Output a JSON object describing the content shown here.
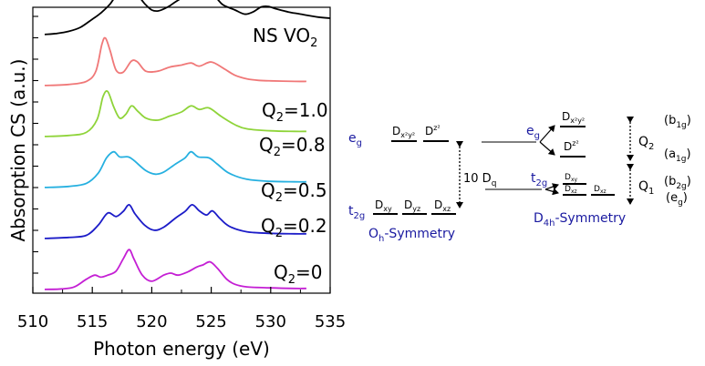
{
  "chart_data": {
    "type": "line",
    "title": "",
    "xlabel": "Photon energy (eV)",
    "ylabel": "Absorption CS (a.u.)",
    "xlim": [
      510,
      535
    ],
    "x_ticks": [
      "510",
      "515",
      "520",
      "525",
      "530",
      "535"
    ],
    "series": [
      {
        "name": "NS VO2",
        "label_main": "NS VO",
        "label_sub": "2",
        "color": "#000000",
        "offset": 5.0,
        "points": [
          [
            511,
            0.02
          ],
          [
            512,
            0.04
          ],
          [
            513,
            0.08
          ],
          [
            514,
            0.16
          ],
          [
            515,
            0.32
          ],
          [
            515.5,
            0.4
          ],
          [
            516,
            0.5
          ],
          [
            516.5,
            0.62
          ],
          [
            517,
            0.78
          ],
          [
            517.5,
            0.88
          ],
          [
            518,
            0.9
          ],
          [
            518.5,
            0.86
          ],
          [
            519,
            0.74
          ],
          [
            519.5,
            0.6
          ],
          [
            520,
            0.5
          ],
          [
            520.5,
            0.48
          ],
          [
            521,
            0.52
          ],
          [
            521.5,
            0.58
          ],
          [
            522,
            0.66
          ],
          [
            523,
            0.8
          ],
          [
            524,
            0.9
          ],
          [
            524.5,
            0.9
          ],
          [
            525,
            0.84
          ],
          [
            525.5,
            0.72
          ],
          [
            526,
            0.6
          ],
          [
            527,
            0.5
          ],
          [
            527.8,
            0.42
          ],
          [
            528.5,
            0.46
          ],
          [
            529.2,
            0.56
          ],
          [
            529.8,
            0.57
          ],
          [
            530.5,
            0.52
          ],
          [
            531.5,
            0.46
          ],
          [
            532.5,
            0.42
          ],
          [
            534,
            0.36
          ],
          [
            535,
            0.34
          ]
        ]
      },
      {
        "name": "Q2=1.0",
        "label_main": "Q",
        "label_sub": "2",
        "label_tail": "=1.0",
        "color": "#f07878",
        "offset": 4.0,
        "points": [
          [
            511,
            0.02
          ],
          [
            513,
            0.04
          ],
          [
            514.5,
            0.1
          ],
          [
            515.3,
            0.3
          ],
          [
            515.8,
            0.82
          ],
          [
            516.1,
            0.95
          ],
          [
            516.5,
            0.7
          ],
          [
            517,
            0.32
          ],
          [
            517.6,
            0.28
          ],
          [
            518.3,
            0.5
          ],
          [
            518.8,
            0.48
          ],
          [
            519.5,
            0.3
          ],
          [
            520.5,
            0.3
          ],
          [
            521.5,
            0.38
          ],
          [
            522.5,
            0.42
          ],
          [
            523.3,
            0.46
          ],
          [
            524,
            0.4
          ],
          [
            525,
            0.48
          ],
          [
            526,
            0.36
          ],
          [
            527,
            0.22
          ],
          [
            528,
            0.15
          ],
          [
            529,
            0.12
          ],
          [
            530,
            0.11
          ],
          [
            532,
            0.1
          ],
          [
            533,
            0.1
          ]
        ]
      },
      {
        "name": "Q2=0.8",
        "label_main": "Q",
        "label_sub": "2",
        "label_tail": "=0.8",
        "color": "#8fd43a",
        "offset": 3.0,
        "points": [
          [
            511,
            0.02
          ],
          [
            513,
            0.04
          ],
          [
            514.5,
            0.1
          ],
          [
            515.4,
            0.35
          ],
          [
            515.9,
            0.8
          ],
          [
            516.3,
            0.9
          ],
          [
            516.8,
            0.6
          ],
          [
            517.3,
            0.38
          ],
          [
            517.8,
            0.45
          ],
          [
            518.3,
            0.62
          ],
          [
            518.8,
            0.52
          ],
          [
            519.5,
            0.38
          ],
          [
            520.5,
            0.34
          ],
          [
            521.5,
            0.42
          ],
          [
            522.5,
            0.5
          ],
          [
            523.3,
            0.62
          ],
          [
            524,
            0.55
          ],
          [
            524.8,
            0.58
          ],
          [
            525.8,
            0.42
          ],
          [
            527,
            0.25
          ],
          [
            528,
            0.17
          ],
          [
            530,
            0.13
          ],
          [
            532,
            0.12
          ],
          [
            533,
            0.12
          ]
        ]
      },
      {
        "name": "Q2=0.5",
        "label_main": "Q",
        "label_sub": "2",
        "label_tail": "=0.5",
        "color": "#26b0e0",
        "offset": 2.0,
        "points": [
          [
            511,
            0.02
          ],
          [
            513,
            0.04
          ],
          [
            514.5,
            0.1
          ],
          [
            515.5,
            0.3
          ],
          [
            516.2,
            0.6
          ],
          [
            516.8,
            0.72
          ],
          [
            517.3,
            0.62
          ],
          [
            518,
            0.62
          ],
          [
            518.5,
            0.55
          ],
          [
            519.5,
            0.35
          ],
          [
            520.3,
            0.28
          ],
          [
            521,
            0.32
          ],
          [
            522,
            0.48
          ],
          [
            522.8,
            0.6
          ],
          [
            523.3,
            0.72
          ],
          [
            523.9,
            0.62
          ],
          [
            524.8,
            0.6
          ],
          [
            525.5,
            0.48
          ],
          [
            526.5,
            0.3
          ],
          [
            528,
            0.18
          ],
          [
            530,
            0.14
          ],
          [
            532,
            0.13
          ],
          [
            533,
            0.13
          ]
        ]
      },
      {
        "name": "Q2=0.2",
        "label_main": "Q",
        "label_sub": "2",
        "label_tail": "=0.2",
        "color": "#1c1cc8",
        "offset": 1.0,
        "points": [
          [
            511,
            0.02
          ],
          [
            513,
            0.04
          ],
          [
            514.5,
            0.08
          ],
          [
            515.5,
            0.28
          ],
          [
            516.3,
            0.52
          ],
          [
            517,
            0.45
          ],
          [
            517.6,
            0.55
          ],
          [
            518.1,
            0.68
          ],
          [
            518.6,
            0.5
          ],
          [
            519.4,
            0.28
          ],
          [
            520.2,
            0.18
          ],
          [
            521,
            0.24
          ],
          [
            522,
            0.42
          ],
          [
            522.8,
            0.55
          ],
          [
            523.4,
            0.68
          ],
          [
            524,
            0.56
          ],
          [
            524.6,
            0.48
          ],
          [
            525.1,
            0.56
          ],
          [
            525.7,
            0.42
          ],
          [
            526.5,
            0.26
          ],
          [
            528,
            0.15
          ],
          [
            530,
            0.12
          ],
          [
            532,
            0.11
          ],
          [
            533,
            0.11
          ]
        ]
      },
      {
        "name": "Q2=0",
        "label_main": "Q",
        "label_sub": "2",
        "label_tail": "=0",
        "color": "#c41fd4",
        "offset": 0.0,
        "points": [
          [
            511,
            0.02
          ],
          [
            512.5,
            0.03
          ],
          [
            513.5,
            0.07
          ],
          [
            514.5,
            0.22
          ],
          [
            515.2,
            0.3
          ],
          [
            515.7,
            0.26
          ],
          [
            516.3,
            0.3
          ],
          [
            517,
            0.38
          ],
          [
            517.6,
            0.62
          ],
          [
            518.1,
            0.8
          ],
          [
            518.5,
            0.62
          ],
          [
            519.2,
            0.3
          ],
          [
            520,
            0.18
          ],
          [
            521,
            0.3
          ],
          [
            521.6,
            0.34
          ],
          [
            522.2,
            0.3
          ],
          [
            523,
            0.36
          ],
          [
            523.8,
            0.46
          ],
          [
            524.3,
            0.5
          ],
          [
            524.9,
            0.56
          ],
          [
            525.5,
            0.44
          ],
          [
            526.3,
            0.22
          ],
          [
            527,
            0.12
          ],
          [
            528,
            0.07
          ],
          [
            530,
            0.05
          ],
          [
            532,
            0.04
          ],
          [
            533,
            0.04
          ]
        ]
      }
    ],
    "grid": false,
    "legend": "inline labels at curves"
  },
  "diagram": {
    "oh": {
      "eg_main": "e",
      "eg_sub": "g",
      "t2g_main": "t",
      "t2g_sub": "2g",
      "dx2y2_main": "D",
      "dx2y2_sub": "x²y²",
      "dz2_main": "D",
      "dz2_sub": "z²",
      "dxy_main": "D",
      "dxy_sub": "xy",
      "dyz_main": "D",
      "dyz_sub": "yz",
      "dxz_main": "D",
      "dxz_sub": "xz",
      "split_main": "10 D",
      "split_sub": "q",
      "symmetry_main": "O",
      "symmetry_sub": "h",
      "symmetry_tail": "-Symmetry"
    },
    "d4h": {
      "eg_main": "e",
      "eg_sub": "g",
      "t2g_main": "t",
      "t2g_sub": "2g",
      "dx2y2_main": "D",
      "dx2y2_sub": "x²y²",
      "dz2_main": "D",
      "dz2_sub": "z²",
      "dxy_main": "D",
      "dxy_sub": "xy",
      "dyz_main": "D",
      "dyz_sub": "yz",
      "dxz_main": "D",
      "dxz_sub": "xz",
      "q2_main": "Q",
      "q2_sub": "2",
      "q1_main": "Q",
      "q1_sub": "1",
      "b1g_main": "(b",
      "b1g_sub": "1g",
      "b1g_tail": ")",
      "a1g_main": "(a",
      "a1g_sub": "1g",
      "a1g_tail": ")",
      "b2g_main": "(b",
      "b2g_sub": "2g",
      "b2g_tail": ")",
      "egsym_main": "(e",
      "egsym_sub": "g",
      "egsym_tail": ")",
      "symmetry_main": "D",
      "symmetry_sub": "4h",
      "symmetry_tail": "-Symmetry"
    }
  }
}
